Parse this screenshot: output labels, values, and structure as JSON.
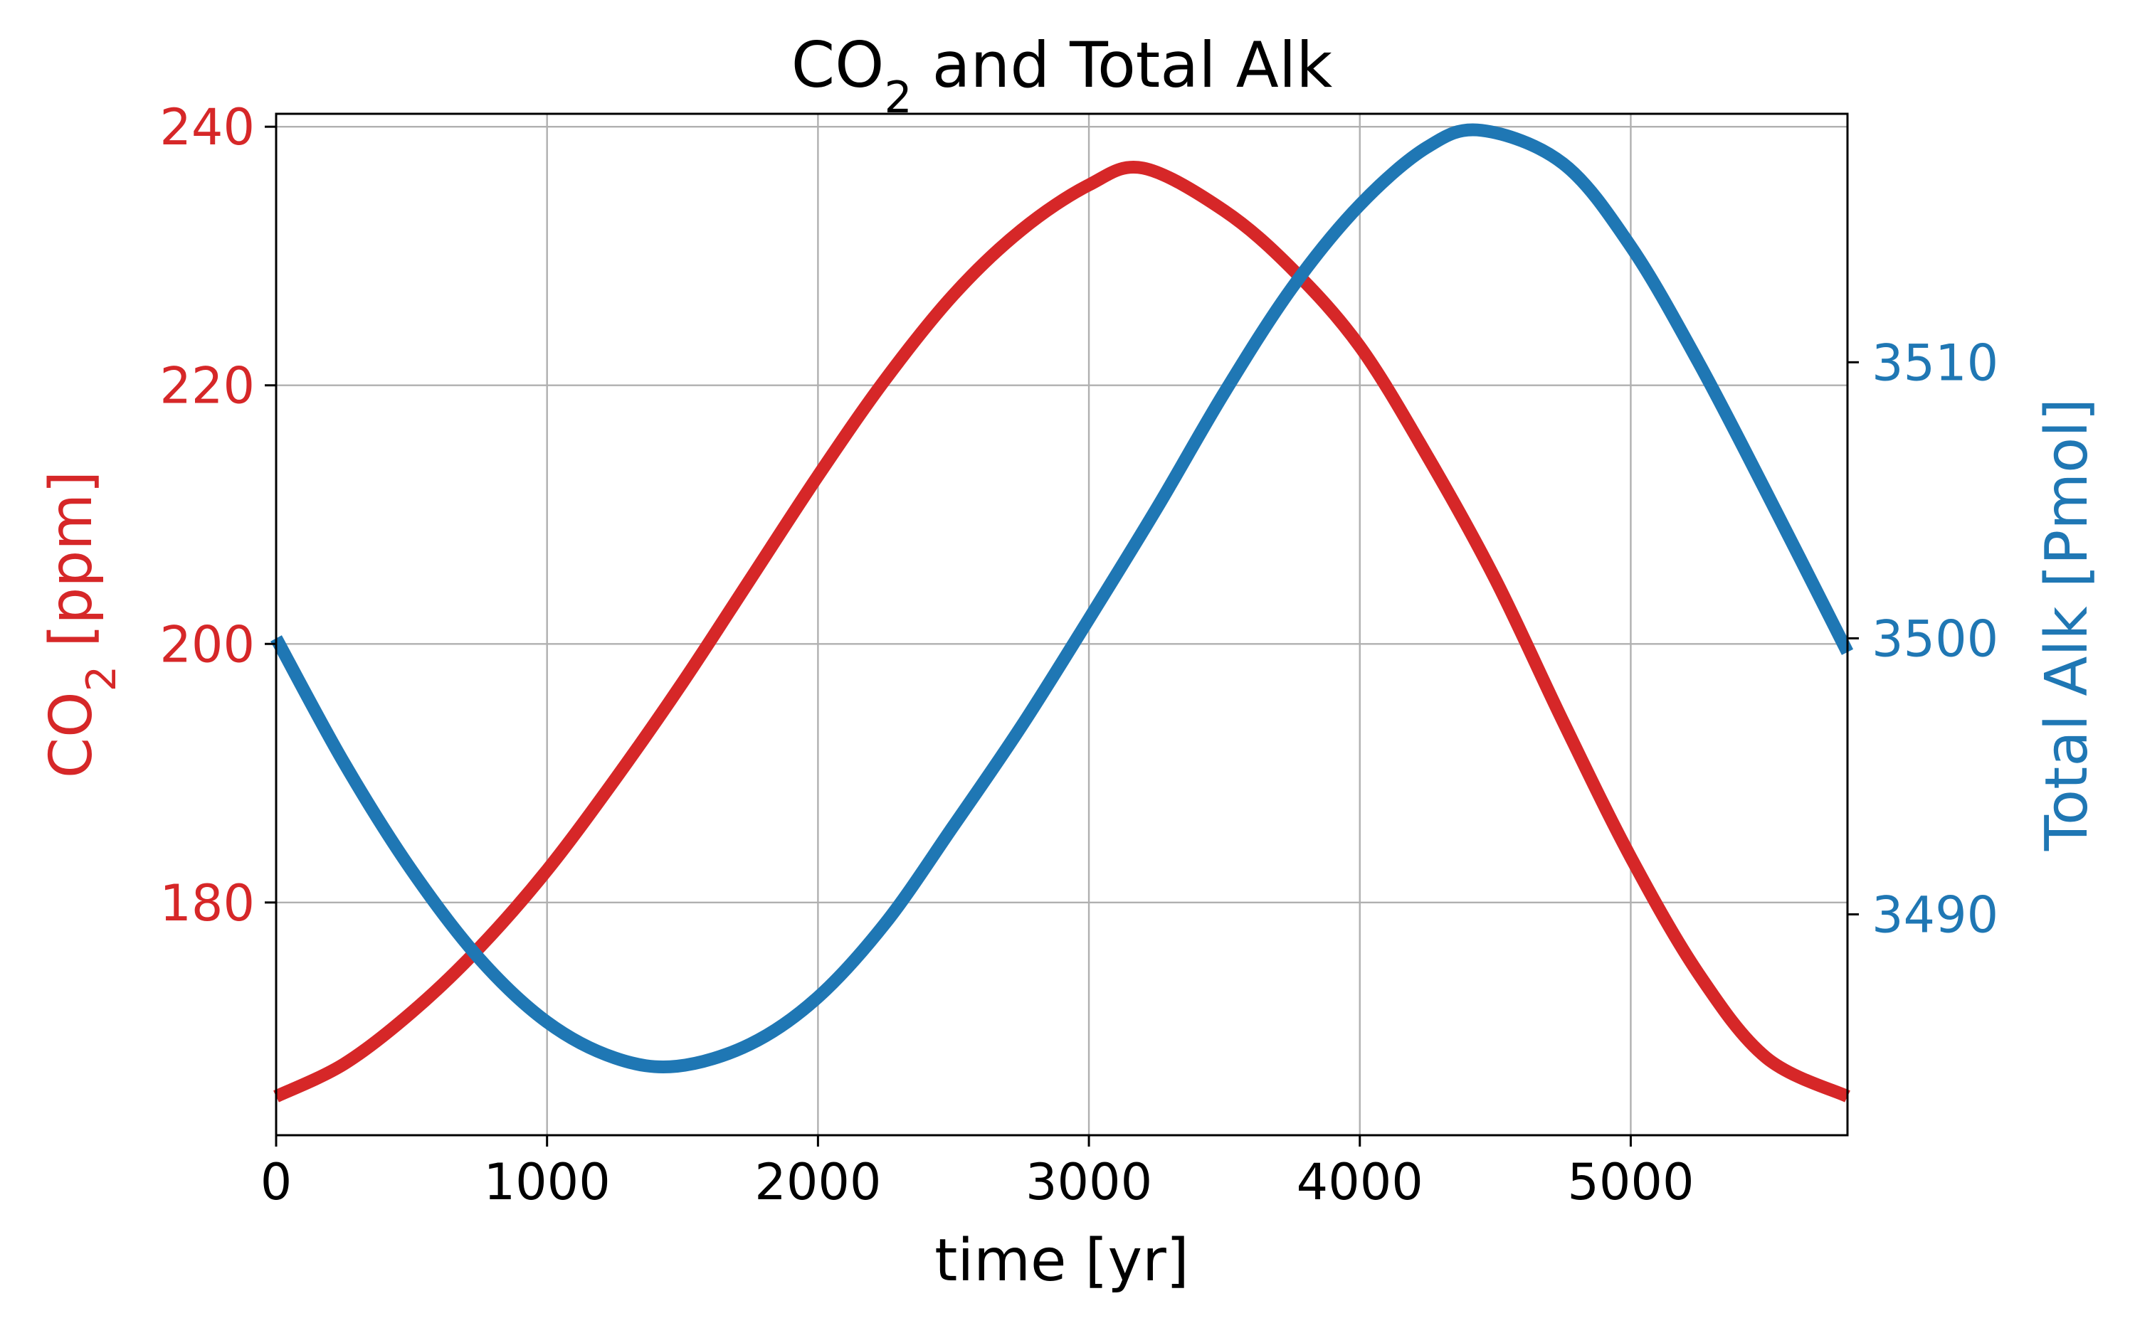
{
  "chart_data": {
    "type": "line",
    "title": "CO₂ and Total Alk",
    "xlabel": "time [yr]",
    "ylabel_left": "CO₂ [ppm]",
    "ylabel_right": "Total Alk [Pmol]",
    "xlim": [
      0,
      5800
    ],
    "ylim_left": [
      162,
      241
    ],
    "ylim_right": [
      3482,
      3519
    ],
    "x_ticks": [
      0,
      1000,
      2000,
      3000,
      4000,
      5000
    ],
    "x_tick_labels": [
      "0",
      "1000",
      "2000",
      "3000",
      "4000",
      "5000"
    ],
    "y_left_ticks": [
      180,
      200,
      220,
      240
    ],
    "y_left_tick_labels": [
      "180",
      "200",
      "220",
      "240"
    ],
    "y_right_ticks": [
      3490,
      3500,
      3510
    ],
    "y_right_tick_labels": [
      "3490",
      "3500",
      "3510"
    ],
    "grid": true,
    "legend": "none",
    "series": [
      {
        "axis": "left",
        "color": "#d62728",
        "x": [
          0,
          250,
          500,
          750,
          1000,
          1250,
          1500,
          1750,
          2000,
          2250,
          2500,
          2750,
          3000,
          3200,
          3500,
          3750,
          4000,
          4250,
          4500,
          4750,
          5000,
          5250,
          5500,
          5800
        ],
        "values": [
          165,
          167.5,
          171.5,
          176.5,
          182.5,
          189.5,
          197,
          205,
          213,
          220.5,
          227,
          232,
          235.5,
          236.8,
          233.5,
          229,
          223,
          214.5,
          205,
          194,
          183.5,
          174.5,
          168,
          165
        ]
      },
      {
        "axis": "right",
        "color": "#1f77b4",
        "x": [
          0,
          250,
          500,
          750,
          1000,
          1250,
          1480,
          1750,
          2000,
          2250,
          2500,
          2750,
          3000,
          3250,
          3500,
          3750,
          4000,
          4250,
          4450,
          4750,
          5000,
          5250,
          5500,
          5800
        ],
        "values": [
          3500,
          3495.5,
          3491.6,
          3488.4,
          3486.1,
          3484.8,
          3484.5,
          3485.3,
          3487,
          3489.7,
          3493.2,
          3496.8,
          3500.7,
          3504.7,
          3508.9,
          3512.7,
          3515.7,
          3517.8,
          3518.4,
          3517.2,
          3514.2,
          3510,
          3505.3,
          3499.5
        ]
      }
    ]
  }
}
